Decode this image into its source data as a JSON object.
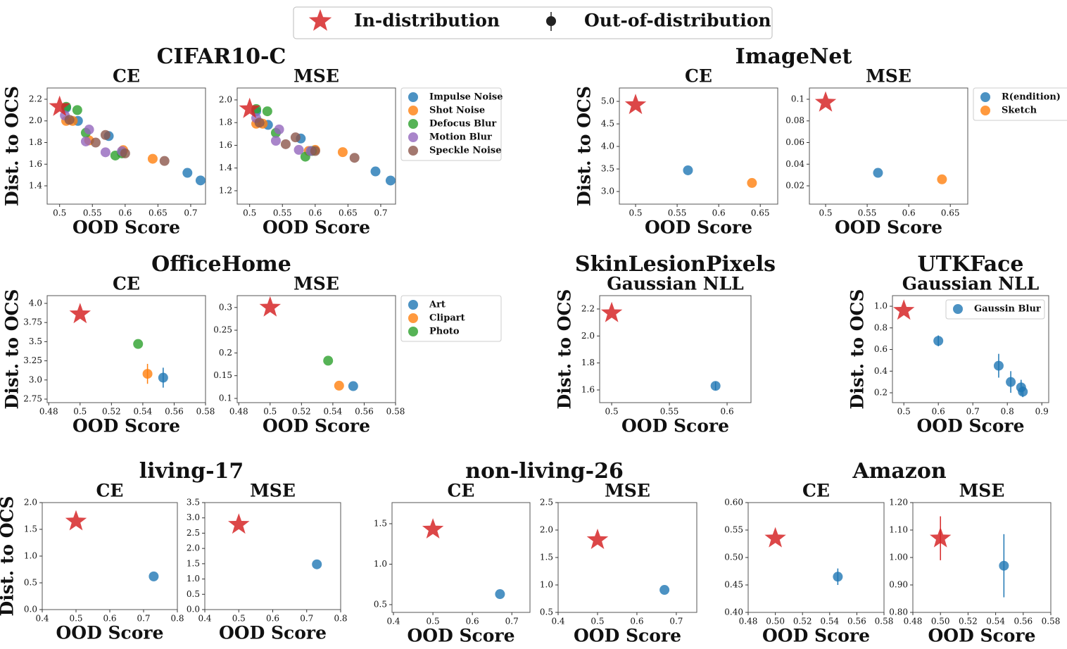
{
  "legend": {
    "entries": [
      {
        "name": "In-distribution",
        "color": "#d62728"
      },
      {
        "name": "Out-of-distribution",
        "color": "#222222"
      }
    ]
  },
  "groups": [
    {
      "title": "CIFAR10-C"
    },
    {
      "title": "ImageNet"
    },
    {
      "title": "OfficeHome"
    },
    {
      "title": "SkinLesionPixels"
    },
    {
      "title": "UTKFace"
    },
    {
      "title": "living-17"
    },
    {
      "title": "non-living-26"
    },
    {
      "title": "Amazon"
    }
  ],
  "chart_data": [
    {
      "type": "scatter",
      "title": "CE",
      "xlabel": "OOD Score",
      "ylabel": "Dist. to OCS",
      "xlim": [
        0.481,
        0.7226
      ],
      "ylim": [
        1.231,
        2.304
      ],
      "xticks": [
        0.5,
        0.55,
        0.6,
        0.65,
        0.7
      ],
      "yticks": [
        1.4,
        1.6,
        1.8,
        {
          "value": 2,
          "label": "2.0"
        },
        2.2
      ],
      "in_distribution": {
        "x": 0.5,
        "y": 2.13,
        "color": "#d62728"
      },
      "series": [
        {
          "color": "#1f77b4",
          "x": [
            0.51,
            0.528,
            0.575,
            0.695,
            0.715
          ],
          "values": [
            2.12,
            2.0,
            1.86,
            1.52,
            1.45
          ]
        },
        {
          "color": "#ff7f0e",
          "x": [
            0.51,
            0.52,
            0.545,
            0.597,
            0.642
          ],
          "values": [
            2.0,
            2.0,
            1.82,
            1.73,
            1.65
          ]
        },
        {
          "color": "#2ca02c",
          "x": [
            0.51,
            0.527,
            0.54,
            0.585,
            0.595
          ],
          "values": [
            2.13,
            2.1,
            1.89,
            1.68,
            1.7
          ]
        },
        {
          "color": "#9467bd",
          "x": [
            0.508,
            0.54,
            0.545,
            0.57,
            0.595
          ],
          "values": [
            2.05,
            1.81,
            1.92,
            1.71,
            1.72
          ]
        },
        {
          "color": "#8c564b",
          "x": [
            0.515,
            0.555,
            0.57,
            0.6,
            0.66
          ],
          "values": [
            2.01,
            1.8,
            1.87,
            1.7,
            1.63
          ]
        }
      ]
    },
    {
      "type": "scatter",
      "title": "MSE",
      "xlabel": "OOD Score",
      "legend_loc": "outside right",
      "xlim": [
        0.481,
        0.7226
      ],
      "ylim": [
        1.082,
        2.105
      ],
      "xticks": [
        0.5,
        0.55,
        0.6,
        0.65,
        0.7
      ],
      "yticks": [
        1.2,
        1.4,
        1.6,
        1.8,
        {
          "value": 2,
          "label": "2.0"
        }
      ],
      "in_distribution": {
        "x": 0.5,
        "y": 1.92,
        "color": "#d62728"
      },
      "series": [
        {
          "name": "Impulse Noise",
          "color": "#1f77b4",
          "x": [
            0.51,
            0.528,
            0.578,
            0.692,
            0.715
          ],
          "values": [
            1.9,
            1.78,
            1.66,
            1.37,
            1.29
          ]
        },
        {
          "name": "Shot Noise",
          "color": "#ff7f0e",
          "x": [
            0.51,
            0.52,
            0.59,
            0.6,
            0.642
          ],
          "values": [
            1.79,
            1.79,
            1.55,
            1.56,
            1.54
          ]
        },
        {
          "name": "Defocus Blur",
          "color": "#2ca02c",
          "x": [
            0.51,
            0.527,
            0.54,
            0.585,
            0.595
          ],
          "values": [
            1.92,
            1.9,
            1.71,
            1.5,
            1.55
          ]
        },
        {
          "name": "Motion Blur",
          "color": "#9467bd",
          "x": [
            0.51,
            0.54,
            0.545,
            0.575,
            0.593
          ],
          "values": [
            1.84,
            1.64,
            1.74,
            1.56,
            1.55
          ]
        },
        {
          "name": "Speckle Noise",
          "color": "#8c564b",
          "x": [
            0.515,
            0.555,
            0.57,
            0.6,
            0.66
          ],
          "values": [
            1.8,
            1.61,
            1.67,
            1.55,
            1.49
          ]
        }
      ]
    },
    {
      "type": "scatter",
      "title": "CE",
      "xlabel": "OOD Score",
      "ylabel": "Dist. to OCS",
      "xlim": [
        0.4805,
        0.671
      ],
      "ylim": [
        2.72,
        5.297
      ],
      "xticks": [
        0.5,
        0.55,
        0.6,
        0.65
      ],
      "yticks": [
        {
          "value": 3,
          "label": "3.0"
        },
        3.5,
        {
          "value": 4,
          "label": "4.0"
        },
        4.5,
        {
          "value": 5,
          "label": "5.0"
        }
      ],
      "in_distribution": {
        "x": 0.5,
        "y": 4.92,
        "color": "#d62728"
      },
      "series": [
        {
          "color": "#1f77b4",
          "x": [
            0.563
          ],
          "values": [
            3.47
          ]
        },
        {
          "color": "#ff7f0e",
          "x": [
            0.64
          ],
          "values": [
            3.19
          ]
        }
      ]
    },
    {
      "type": "scatter",
      "title": "MSE",
      "xlabel": "OOD Score",
      "legend_loc": "outside right",
      "xlim": [
        0.4805,
        0.671
      ],
      "ylim": [
        0.0031,
        0.1104
      ],
      "xticks": [
        0.5,
        0.55,
        0.6,
        0.65
      ],
      "yticks": [
        0.02,
        0.04,
        0.06,
        0.08,
        0.1
      ],
      "in_distribution": {
        "x": 0.5,
        "y": 0.097,
        "color": "#d62728"
      },
      "series": [
        {
          "name": "R(endition)",
          "color": "#1f77b4",
          "x": [
            0.563
          ],
          "values": [
            0.032
          ]
        },
        {
          "name": "Sketch",
          "color": "#ff7f0e",
          "x": [
            0.64
          ],
          "values": [
            0.026
          ]
        }
      ]
    },
    {
      "type": "scatter",
      "title": "CE",
      "xlabel": "OOD Score",
      "ylabel": "Dist. to OCS",
      "xlim": [
        0.479,
        0.58
      ],
      "ylim": [
        2.704,
        4.101
      ],
      "xticks": [
        0.48,
        0.5,
        0.52,
        0.54,
        0.56,
        0.58
      ],
      "yticks": [
        2.75,
        {
          "value": 3,
          "label": "3.0"
        },
        3.25,
        3.5,
        3.75,
        {
          "value": 4,
          "label": "4.0"
        }
      ],
      "in_distribution": {
        "x": 0.5,
        "y": 3.86,
        "color": "#d62728"
      },
      "series": [
        {
          "color": "#1f77b4",
          "x": [
            0.553
          ],
          "values": [
            3.03
          ],
          "errors": [
            0.13
          ]
        },
        {
          "color": "#ff7f0e",
          "x": [
            0.543
          ],
          "values": [
            3.08
          ],
          "errors": [
            0.13
          ]
        },
        {
          "color": "#2ca02c",
          "x": [
            0.537
          ],
          "values": [
            3.47
          ]
        }
      ]
    },
    {
      "type": "scatter",
      "title": "MSE",
      "xlabel": "OOD Score",
      "legend_loc": "outside right",
      "xlim": [
        0.479,
        0.58
      ],
      "ylim": [
        0.0907,
        0.326
      ],
      "xticks": [
        0.48,
        0.5,
        0.52,
        0.54,
        0.56,
        0.58
      ],
      "yticks": [
        0.1,
        0.15,
        0.2,
        0.25,
        0.3
      ],
      "in_distribution": {
        "x": 0.5,
        "y": 0.3,
        "color": "#d62728"
      },
      "series": [
        {
          "name": "Art",
          "color": "#1f77b4",
          "x": [
            0.553
          ],
          "values": [
            0.127
          ]
        },
        {
          "name": "Clipart",
          "color": "#ff7f0e",
          "x": [
            0.544
          ],
          "values": [
            0.128
          ]
        },
        {
          "name": "Photo",
          "color": "#2ca02c",
          "x": [
            0.537
          ],
          "values": [
            0.183
          ]
        }
      ]
    },
    {
      "type": "scatter",
      "title": "Gaussian NLL",
      "xlabel": "OOD Score",
      "ylabel": "Dist. to OCS",
      "xlim": [
        0.4896,
        0.6207
      ],
      "ylim": [
        1.506,
        2.299
      ],
      "xticks": [
        0.5,
        0.55,
        0.6
      ],
      "yticks": [
        1.6,
        1.8,
        {
          "value": 2,
          "label": "2.0"
        },
        2.2
      ],
      "in_distribution": {
        "x": 0.5,
        "y": 2.17,
        "color": "#d62728"
      },
      "series": [
        {
          "color": "#1f77b4",
          "x": [
            0.59
          ],
          "values": [
            1.63
          ],
          "errors": [
            0.03
          ]
        }
      ]
    },
    {
      "type": "scatter",
      "title": "Gaussian NLL",
      "xlabel": "OOD Score",
      "ylabel": "Dist. to OCS",
      "legend_loc": "upper right",
      "xlim": [
        0.467,
        0.92
      ],
      "ylim": [
        0.109,
        1.098
      ],
      "xticks": [
        0.5,
        0.6,
        0.7,
        0.8,
        0.9
      ],
      "yticks": [
        0.2,
        0.4,
        0.6,
        0.8,
        {
          "value": 1,
          "label": "1.0"
        }
      ],
      "in_distribution": {
        "x": 0.5,
        "y": 0.96,
        "color": "#d62728"
      },
      "series": [
        {
          "name": "Gaussin Blur",
          "color": "#1f77b4",
          "x": [
            0.6,
            0.775,
            0.81,
            0.84,
            0.845
          ],
          "values": [
            0.68,
            0.45,
            0.3,
            0.25,
            0.21
          ],
          "errors": [
            0.05,
            0.11,
            0.1,
            0.07,
            0.05
          ]
        }
      ]
    },
    {
      "type": "scatter",
      "title": "CE",
      "xlabel": "OOD Score",
      "ylabel": "Dist. to OCS",
      "xlim": [
        0.4,
        0.8
      ],
      "ylim": [
        0,
        2
      ],
      "xticks": [
        0.4,
        0.5,
        0.6,
        0.7,
        0.8
      ],
      "yticks": [
        {
          "value": 0,
          "label": "0.0"
        },
        0.5,
        {
          "value": 1,
          "label": "1.0"
        },
        1.5,
        {
          "value": 2,
          "label": "2.0"
        }
      ],
      "in_distribution": {
        "x": 0.5,
        "y": 1.65,
        "color": "#d62728"
      },
      "series": [
        {
          "color": "#1f77b4",
          "x": [
            0.73
          ],
          "values": [
            0.62
          ]
        }
      ]
    },
    {
      "type": "scatter",
      "title": "MSE",
      "xlabel": "OOD Score",
      "xlim": [
        0.4,
        0.8
      ],
      "ylim": [
        0,
        3.5
      ],
      "xticks": [
        0.4,
        0.5,
        0.6,
        0.7,
        0.8
      ],
      "yticks": [
        {
          "value": 0,
          "label": "0.0"
        },
        0.5,
        {
          "value": 1,
          "label": "1.0"
        },
        1.5,
        {
          "value": 2,
          "label": "2.0"
        },
        2.5,
        {
          "value": 3,
          "label": "3.0"
        },
        3.5
      ],
      "in_distribution": {
        "x": 0.5,
        "y": 2.78,
        "color": "#d62728"
      },
      "series": [
        {
          "color": "#1f77b4",
          "x": [
            0.73
          ],
          "values": [
            1.48
          ]
        }
      ]
    },
    {
      "type": "scatter",
      "title": "CE",
      "xlabel": "OOD Score",
      "xlim": [
        0.3964,
        0.746
      ],
      "ylim": [
        0.404,
        1.761
      ],
      "xticks": [
        0.4,
        0.5,
        0.6,
        0.7
      ],
      "yticks": [
        0.5,
        {
          "value": 1,
          "label": "1.0"
        },
        1.5
      ],
      "in_distribution": {
        "x": 0.5,
        "y": 1.43,
        "color": "#d62728"
      },
      "series": [
        {
          "color": "#1f77b4",
          "x": [
            0.67
          ],
          "values": [
            0.63
          ]
        }
      ]
    },
    {
      "type": "scatter",
      "title": "MSE",
      "xlabel": "OOD Score",
      "xlim": [
        0.4,
        0.752
      ],
      "ylim": [
        0.5,
        2.5
      ],
      "xticks": [
        0.4,
        0.5,
        0.6,
        0.7
      ],
      "yticks": [
        0.5,
        {
          "value": 1,
          "label": "1.0"
        },
        1.5,
        {
          "value": 2,
          "label": "2.0"
        },
        2.5
      ],
      "in_distribution": {
        "x": 0.5,
        "y": 1.82,
        "color": "#d62728"
      },
      "series": [
        {
          "color": "#1f77b4",
          "x": [
            0.67
          ],
          "values": [
            0.91
          ]
        }
      ]
    },
    {
      "type": "scatter",
      "title": "CE",
      "xlabel": "OOD Score",
      "xlim": [
        0.48,
        0.58
      ],
      "ylim": [
        0.4,
        0.6
      ],
      "xticks": [
        0.48,
        {
          "value": 0.5,
          "label": "0.50"
        },
        0.52,
        0.54,
        0.56,
        0.58
      ],
      "yticks": [
        {
          "value": 0.4,
          "label": "0.40"
        },
        0.45,
        {
          "value": 0.5,
          "label": "0.50"
        },
        0.55,
        {
          "value": 0.6,
          "label": "0.60"
        }
      ],
      "in_distribution": {
        "x": 0.5,
        "y": 0.535,
        "color": "#d62728"
      },
      "series": [
        {
          "color": "#1f77b4",
          "x": [
            0.546
          ],
          "values": [
            0.465
          ],
          "errors": [
            0.015
          ]
        }
      ]
    },
    {
      "type": "scatter",
      "title": "MSE",
      "xlabel": "OOD Score",
      "xlim": [
        0.48,
        0.58
      ],
      "ylim": [
        0.8,
        1.2
      ],
      "xticks": [
        0.48,
        {
          "value": 0.5,
          "label": "0.50"
        },
        0.52,
        0.54,
        0.56,
        0.58
      ],
      "yticks": [
        {
          "value": 0.8,
          "label": "0.80"
        },
        {
          "value": 0.9,
          "label": "0.90"
        },
        {
          "value": 1,
          "label": "1.00"
        },
        {
          "value": 1.1,
          "label": "1.10"
        },
        {
          "value": 1.2,
          "label": "1.20"
        }
      ],
      "in_distribution": {
        "x": 0.5,
        "y": 1.07,
        "error": 0.08,
        "color": "#d62728"
      },
      "series": [
        {
          "color": "#1f77b4",
          "x": [
            0.546
          ],
          "values": [
            0.97
          ],
          "errors": [
            0.115
          ]
        }
      ]
    }
  ]
}
